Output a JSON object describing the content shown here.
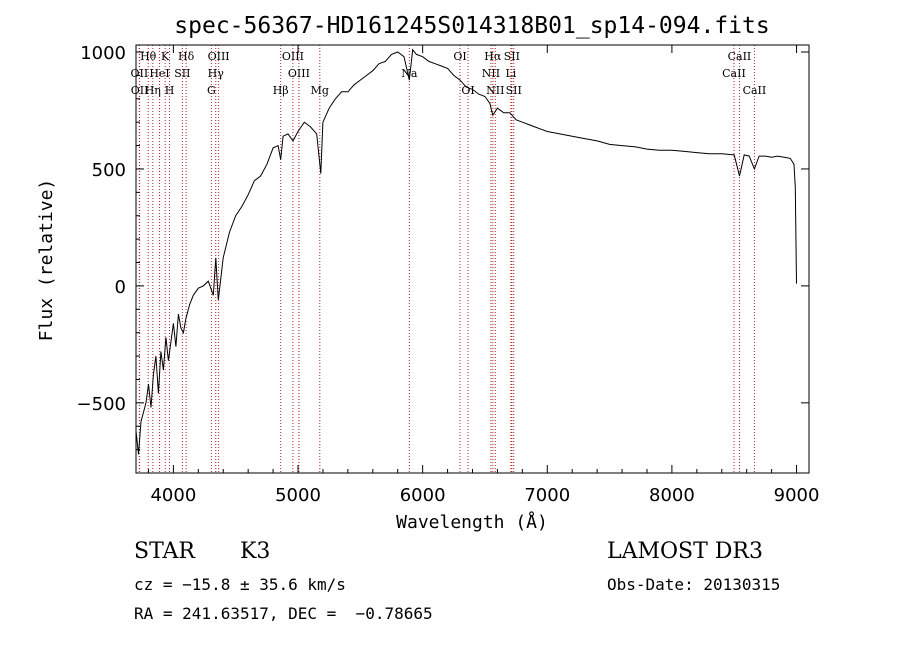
{
  "chart_data": {
    "type": "line",
    "title": "spec-56367-HD161245S014318B01_sp14-094.fits",
    "xlabel": "Wavelength (Å)",
    "ylabel": "Flux (relative)",
    "xlim": [
      3700,
      9100
    ],
    "ylim": [
      -800,
      1030
    ],
    "xticks": [
      4000,
      5000,
      6000,
      7000,
      8000,
      9000
    ],
    "yticks": [
      -500,
      0,
      500,
      1000
    ],
    "series": [
      {
        "name": "spectrum",
        "x": [
          3700,
          3720,
          3740,
          3760,
          3780,
          3800,
          3820,
          3840,
          3860,
          3880,
          3900,
          3920,
          3940,
          3960,
          3980,
          4000,
          4020,
          4040,
          4060,
          4080,
          4100,
          4130,
          4160,
          4200,
          4240,
          4280,
          4320,
          4340,
          4360,
          4400,
          4450,
          4500,
          4550,
          4600,
          4650,
          4700,
          4750,
          4800,
          4840,
          4861,
          4880,
          4920,
          4960,
          5000,
          5050,
          5100,
          5150,
          5183,
          5200,
          5250,
          5300,
          5350,
          5400,
          5450,
          5500,
          5550,
          5600,
          5650,
          5700,
          5750,
          5800,
          5850,
          5893,
          5920,
          5950,
          6000,
          6050,
          6100,
          6150,
          6200,
          6250,
          6300,
          6350,
          6400,
          6450,
          6500,
          6540,
          6563,
          6600,
          6650,
          6700,
          6750,
          6800,
          6850,
          6900,
          6950,
          7000,
          7100,
          7200,
          7300,
          7400,
          7500,
          7600,
          7700,
          7800,
          7900,
          8000,
          8100,
          8200,
          8300,
          8400,
          8500,
          8542,
          8580,
          8620,
          8662,
          8700,
          8750,
          8800,
          8850,
          8900,
          8950,
          8980,
          8990,
          9000
        ],
        "y": [
          -620,
          -720,
          -580,
          -540,
          -500,
          -420,
          -520,
          -380,
          -300,
          -460,
          -280,
          -360,
          -220,
          -320,
          -240,
          -160,
          -260,
          -120,
          -180,
          -200,
          -140,
          -80,
          -40,
          -10,
          0,
          20,
          -40,
          120,
          -60,
          120,
          230,
          300,
          340,
          390,
          450,
          470,
          520,
          590,
          600,
          540,
          640,
          650,
          620,
          660,
          700,
          680,
          650,
          480,
          700,
          760,
          800,
          830,
          830,
          860,
          880,
          900,
          920,
          950,
          960,
          990,
          1000,
          980,
          880,
          1010,
          990,
          980,
          960,
          950,
          940,
          930,
          900,
          880,
          850,
          840,
          820,
          810,
          780,
          730,
          760,
          740,
          740,
          710,
          700,
          690,
          680,
          670,
          660,
          650,
          640,
          630,
          620,
          605,
          600,
          595,
          585,
          580,
          580,
          575,
          570,
          565,
          565,
          560,
          470,
          560,
          555,
          500,
          555,
          555,
          550,
          555,
          550,
          545,
          520,
          420,
          10
        ]
      }
    ],
    "spectral_lines": [
      {
        "name": "Hθ",
        "wavelength": 3798,
        "row": 1
      },
      {
        "name": "OII",
        "wavelength": 3727,
        "row": 2
      },
      {
        "name": "OII",
        "wavelength": 3729,
        "row": 3
      },
      {
        "name": "Hη",
        "wavelength": 3835,
        "row": 3
      },
      {
        "name": "HeI",
        "wavelength": 3889,
        "row": 2
      },
      {
        "name": "K",
        "wavelength": 3934,
        "row": 1
      },
      {
        "name": "H",
        "wavelength": 3969,
        "row": 3
      },
      {
        "name": "SII",
        "wavelength": 4072,
        "row": 2
      },
      {
        "name": "Hδ",
        "wavelength": 4102,
        "row": 1
      },
      {
        "name": "OIII",
        "wavelength": 4363,
        "row": 1
      },
      {
        "name": "Hγ",
        "wavelength": 4340,
        "row": 2
      },
      {
        "name": "G",
        "wavelength": 4305,
        "row": 3
      },
      {
        "name": "Hβ",
        "wavelength": 4861,
        "row": 3
      },
      {
        "name": "OIII",
        "wavelength": 4959,
        "row": 1
      },
      {
        "name": "OIII",
        "wavelength": 5007,
        "row": 2
      },
      {
        "name": "Mg",
        "wavelength": 5175,
        "row": 3
      },
      {
        "name": "Na",
        "wavelength": 5893,
        "row": 2
      },
      {
        "name": "OI",
        "wavelength": 6300,
        "row": 1
      },
      {
        "name": "OI",
        "wavelength": 6364,
        "row": 3
      },
      {
        "name": "NII",
        "wavelength": 6548,
        "row": 2
      },
      {
        "name": "Hα",
        "wavelength": 6563,
        "row": 1
      },
      {
        "name": "NII",
        "wavelength": 6583,
        "row": 3
      },
      {
        "name": "SII",
        "wavelength": 6716,
        "row": 1
      },
      {
        "name": "Li",
        "wavelength": 6708,
        "row": 2
      },
      {
        "name": "SII",
        "wavelength": 6731,
        "row": 3
      },
      {
        "name": "CaII",
        "wavelength": 8498,
        "row": 2
      },
      {
        "name": "CaII",
        "wavelength": 8542,
        "row": 1
      },
      {
        "name": "CaII",
        "wavelength": 8662,
        "row": 3
      }
    ]
  },
  "info": {
    "class": "STAR",
    "subclass": "K3",
    "survey": "LAMOST DR3",
    "cz": "cz = −15.8 ± 35.6 km/s",
    "obs_date": "Obs-Date: 20130315",
    "radec": "RA = 241.63517, DEC =  −0.78665"
  },
  "colors": {
    "spectrum": "#000000",
    "line_marker": "#b22222"
  }
}
